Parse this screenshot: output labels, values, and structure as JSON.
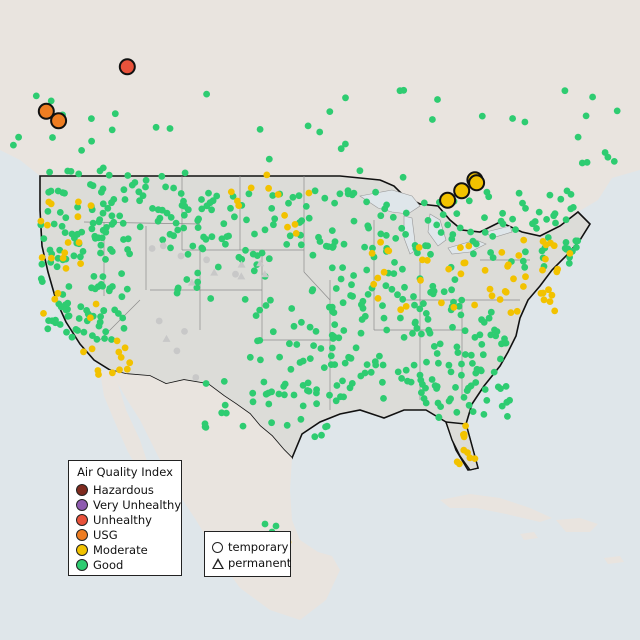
{
  "legend": {
    "title": "Air Quality Index",
    "categories": [
      {
        "label": "Hazardous",
        "color": "#7e2a1e"
      },
      {
        "label": "Very Unhealthy",
        "color": "#8e5ab0"
      },
      {
        "label": "Unhealthy",
        "color": "#e8523b"
      },
      {
        "label": "USG",
        "color": "#ee7d22"
      },
      {
        "label": "Moderate",
        "color": "#f2c200"
      },
      {
        "label": "Good",
        "color": "#2ecc71"
      }
    ]
  },
  "monitor_types": {
    "temporary_label": "temporary",
    "permanent_label": "permanent"
  },
  "colors": {
    "water": "#dfe6ea",
    "land_us": "#dcdcd8",
    "land_other": "#e8e3df",
    "no_data_marker": "#c8c8c8",
    "border": "#111111"
  },
  "map_data": {
    "region": "Continental United States",
    "highlighted_sites": [
      {
        "category": "Unhealthy",
        "type": "temporary",
        "lon": -113.9,
        "lat": 47.3
      },
      {
        "category": "USG",
        "type": "temporary",
        "lon": -123.1,
        "lat": 44.5
      },
      {
        "category": "USG",
        "type": "temporary",
        "lon": -121.7,
        "lat": 43.9
      },
      {
        "category": "Moderate",
        "type": "temporary",
        "lon": -77.5,
        "lat": 38.9
      },
      {
        "category": "Moderate",
        "type": "temporary",
        "lon": -75.9,
        "lat": 39.5
      },
      {
        "category": "Moderate",
        "type": "temporary",
        "lon": -74.4,
        "lat": 40.2
      },
      {
        "category": "Moderate",
        "type": "temporary",
        "lon": -74.2,
        "lat": 40.0
      }
    ]
  }
}
